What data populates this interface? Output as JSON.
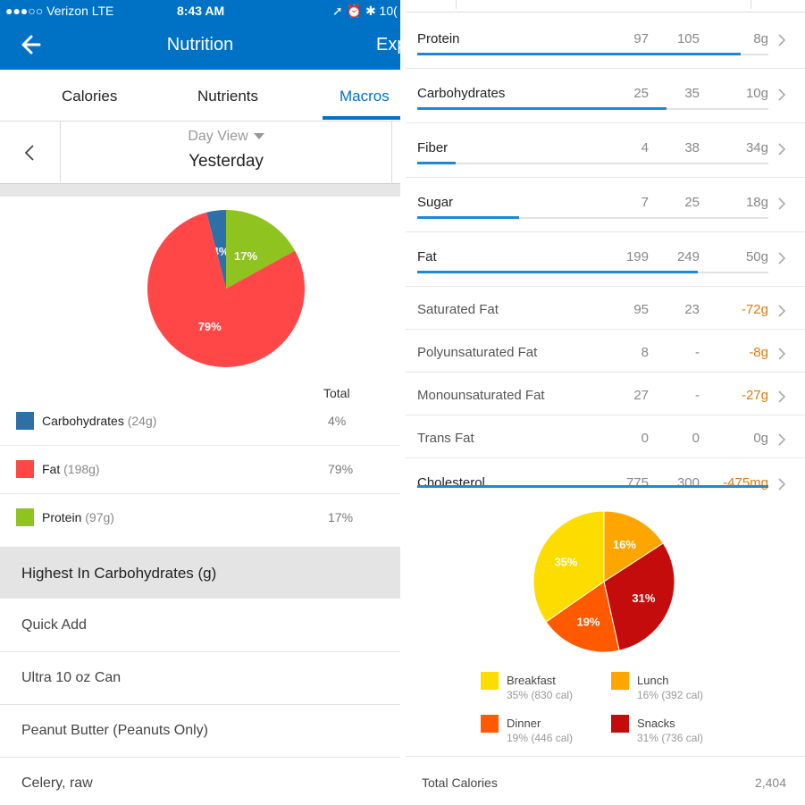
{
  "status_bar": {
    "carrier": "●●●○○ Verizon  LTE",
    "time": "8:43 AM",
    "right": "➚ ⏰ ✱ 10("
  },
  "header": {
    "title": "Nutrition",
    "export_label": "Exp"
  },
  "tabs": [
    {
      "label": "Calories",
      "active": false
    },
    {
      "label": "Nutrients",
      "active": false
    },
    {
      "label": "Macros",
      "active": true
    }
  ],
  "day": {
    "view_label": "Day View",
    "date_label": "Yesterday"
  },
  "macros": {
    "total_header": "Total",
    "rows": [
      {
        "name": "Carbohydrates",
        "grams": "(24g)",
        "percent": "4%",
        "color": "#2e6fa7"
      },
      {
        "name": "Fat",
        "grams": "(198g)",
        "percent": "79%",
        "color": "#ff4747"
      },
      {
        "name": "Protein",
        "grams": "(97g)",
        "percent": "17%",
        "color": "#8fc31f"
      }
    ]
  },
  "highest_header": "Highest In Carbohydrates (g)",
  "foods": [
    "Quick Add",
    "Ultra 10 oz Can",
    "Peanut Butter (Peanuts Only)",
    "Celery, raw"
  ],
  "nutrients": [
    {
      "label": "Protein",
      "total": "97",
      "goal": "105",
      "left": "8g",
      "negative": false,
      "main": true,
      "progress": 0.92
    },
    {
      "label": "Carbohydrates",
      "total": "25",
      "goal": "35",
      "left": "10g",
      "negative": false,
      "main": true,
      "progress": 0.71
    },
    {
      "label": "Fiber",
      "total": "4",
      "goal": "38",
      "left": "34g",
      "negative": false,
      "main": true,
      "progress": 0.11
    },
    {
      "label": "Sugar",
      "total": "7",
      "goal": "25",
      "left": "18g",
      "negative": false,
      "main": true,
      "progress": 0.29
    },
    {
      "label": "Fat",
      "total": "199",
      "goal": "249",
      "left": "50g",
      "negative": false,
      "main": true,
      "progress": 0.8
    },
    {
      "label": "Saturated Fat",
      "total": "95",
      "goal": "23",
      "left": "-72g",
      "negative": true,
      "main": false
    },
    {
      "label": "Polyunsaturated Fat",
      "total": "8",
      "goal": "-",
      "left": "-8g",
      "negative": true,
      "main": false
    },
    {
      "label": "Monounsaturated Fat",
      "total": "27",
      "goal": "-",
      "left": "-27g",
      "negative": true,
      "main": false
    },
    {
      "label": "Trans Fat",
      "total": "0",
      "goal": "0",
      "left": "0g",
      "negative": false,
      "main": false
    },
    {
      "label": "Cholesterol",
      "total": "775",
      "goal": "300",
      "left": "-475mg",
      "negative": true,
      "main": true,
      "progress": 1.0
    }
  ],
  "meals": [
    {
      "name": "Breakfast",
      "detail": "35% (830 cal)",
      "color": "#fddd00"
    },
    {
      "name": "Lunch",
      "detail": "16% (392 cal)",
      "color": "#ffa500"
    },
    {
      "name": "Dinner",
      "detail": "19% (446 cal)",
      "color": "#ff5a00"
    },
    {
      "name": "Snacks",
      "detail": "31% (736 cal)",
      "color": "#c40c0c"
    }
  ],
  "total_calories": {
    "label": "Total Calories",
    "value": "2,404"
  },
  "chart_data": [
    {
      "type": "pie",
      "categories": [
        "Carbohydrates",
        "Protein",
        "Fat"
      ],
      "values": [
        4,
        17,
        79
      ],
      "labels": [
        "4%",
        "17%",
        "79%"
      ],
      "colors": [
        "#2e6fa7",
        "#8fc31f",
        "#ff4747"
      ]
    },
    {
      "type": "pie",
      "categories": [
        "Lunch",
        "Snacks",
        "Dinner",
        "Breakfast"
      ],
      "values": [
        16,
        31,
        19,
        35
      ],
      "labels": [
        "16%",
        "31%",
        "19%",
        "35%"
      ],
      "colors": [
        "#ffa500",
        "#c40c0c",
        "#ff5a00",
        "#fddd00"
      ]
    }
  ]
}
